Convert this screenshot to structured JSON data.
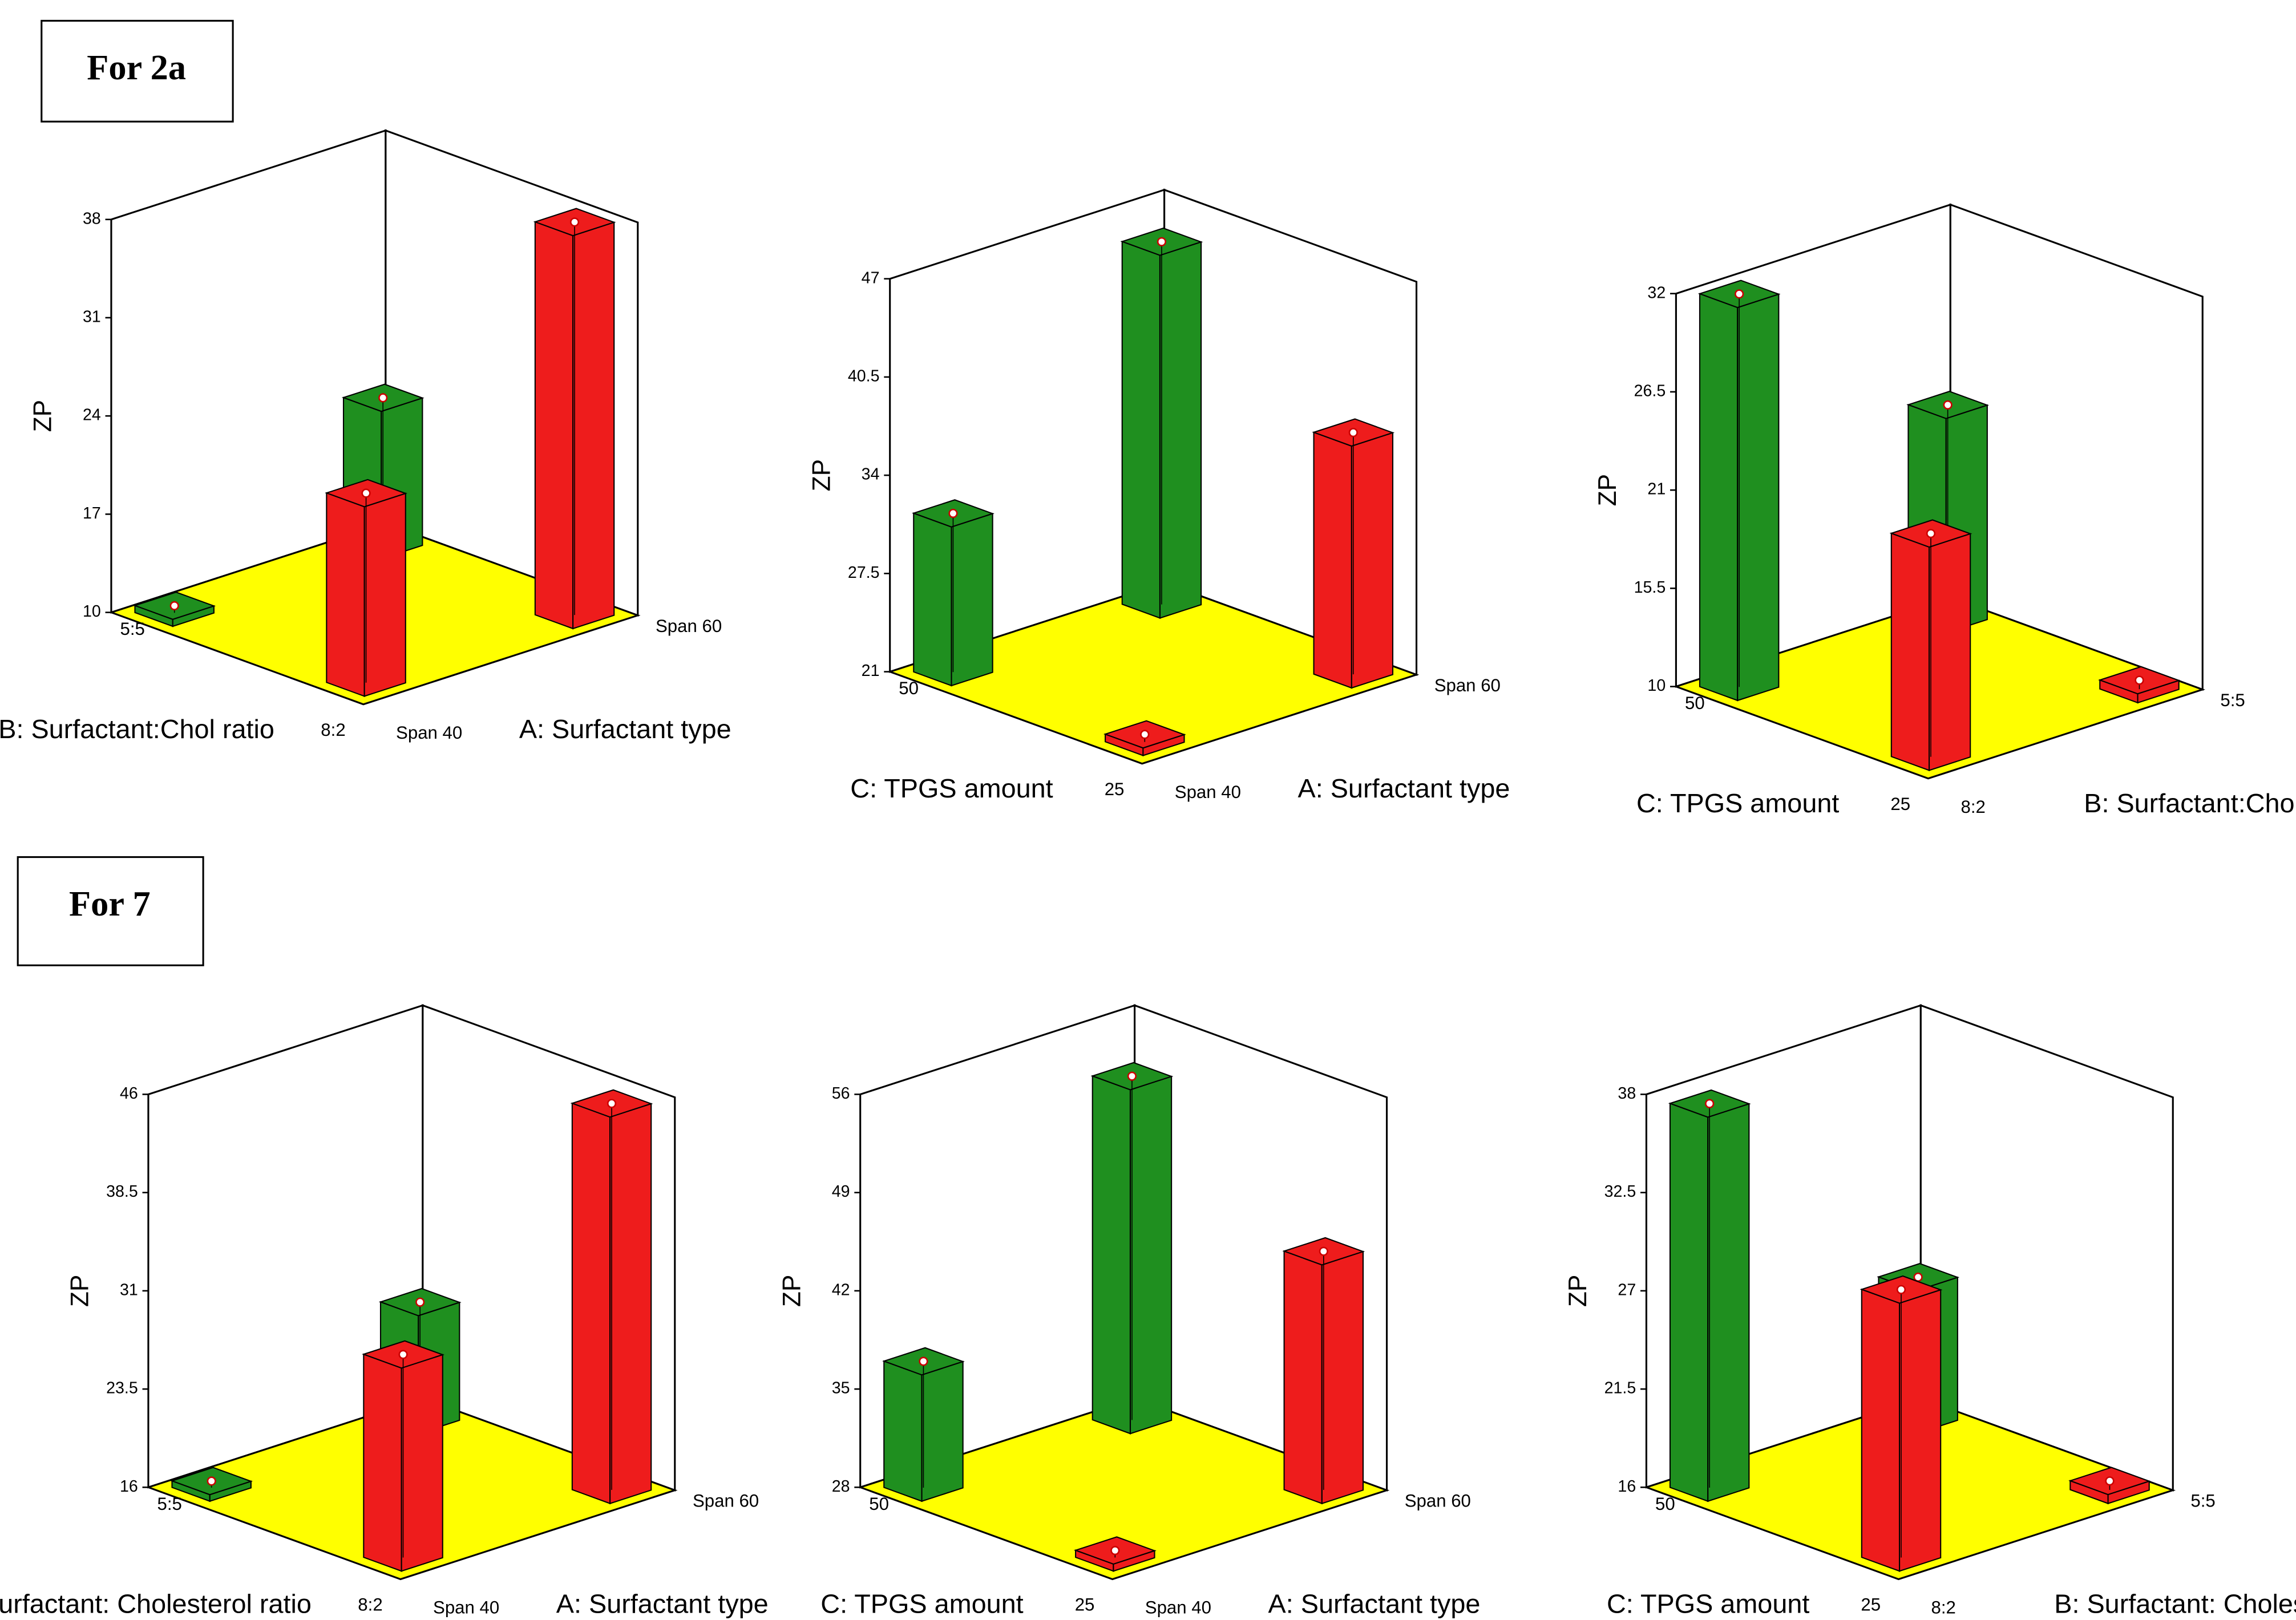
{
  "sections": [
    {
      "label": "For 2a",
      "chart_data": [
        {
          "type": "bar3d",
          "zlabel": "ZP",
          "zlim": [
            10,
            38
          ],
          "zticks": [
            10,
            17,
            24,
            31,
            38
          ],
          "x_label": "A: Surfactant type",
          "x_categories": [
            "Span 40",
            "Span 60"
          ],
          "depth_label": "B: Surfactant:Chol ratio",
          "depth_categories": [
            "8:2",
            "5:5"
          ],
          "values": [
            [
              23.5,
              38
            ],
            [
              10.5,
              20.5
            ]
          ],
          "colors": [
            [
              "#ee1c1c",
              "#ee1c1c"
            ],
            [
              "#1f8f1f",
              "#1f8f1f"
            ]
          ],
          "floor_color": "#ffff00"
        },
        {
          "type": "bar3d",
          "zlabel": "ZP",
          "zlim": [
            21,
            47
          ],
          "zticks": [
            21,
            27.5,
            34,
            40.5,
            47
          ],
          "x_label": "A: Surfactant type",
          "x_categories": [
            "Span 40",
            "Span 60"
          ],
          "depth_label": "C: TPGS amount",
          "depth_categories": [
            "25",
            "50"
          ],
          "values": [
            [
              21.5,
              37
            ],
            [
              31.5,
              45
            ]
          ],
          "colors": [
            [
              "#ee1c1c",
              "#ee1c1c"
            ],
            [
              "#1f8f1f",
              "#1f8f1f"
            ]
          ],
          "floor_color": "#ffff00"
        },
        {
          "type": "bar3d",
          "zlabel": "ZP",
          "zlim": [
            10,
            32
          ],
          "zticks": [
            10,
            15.5,
            21,
            26.5,
            32
          ],
          "x_label": "B: Surfactant:Chol ratio",
          "x_categories": [
            "8:2",
            "5:5"
          ],
          "depth_label": "C: TPGS amount",
          "depth_categories": [
            "25",
            "50"
          ],
          "values": [
            [
              22.5,
              10.5
            ],
            [
              32,
              22
            ]
          ],
          "colors": [
            [
              "#ee1c1c",
              "#ee1c1c"
            ],
            [
              "#1f8f1f",
              "#1f8f1f"
            ]
          ],
          "floor_color": "#ffff00"
        }
      ]
    },
    {
      "label": "For 7",
      "chart_data": [
        {
          "type": "bar3d",
          "zlabel": "ZP",
          "zlim": [
            16,
            46
          ],
          "zticks": [
            16,
            23.5,
            31,
            38.5,
            46
          ],
          "x_label": "A: Surfactant type",
          "x_categories": [
            "Span 40",
            "Span 60"
          ],
          "depth_label": "B: Surfactant: Cholesterol ratio",
          "depth_categories": [
            "8:2",
            "5:5"
          ],
          "values": [
            [
              31.5,
              45.5
            ],
            [
              16.5,
              25
            ]
          ],
          "colors": [
            [
              "#ee1c1c",
              "#ee1c1c"
            ],
            [
              "#1f8f1f",
              "#1f8f1f"
            ]
          ],
          "floor_color": "#ffff00"
        },
        {
          "type": "bar3d",
          "zlabel": "ZP",
          "zlim": [
            28,
            56
          ],
          "zticks": [
            28,
            35,
            42,
            49,
            56
          ],
          "x_label": "A: Surfactant type",
          "x_categories": [
            "Span 40",
            "Span 60"
          ],
          "depth_label": "C: TPGS amount",
          "depth_categories": [
            "25",
            "50"
          ],
          "values": [
            [
              28.5,
              45
            ],
            [
              37,
              52.5
            ]
          ],
          "colors": [
            [
              "#ee1c1c",
              "#ee1c1c"
            ],
            [
              "#1f8f1f",
              "#1f8f1f"
            ]
          ],
          "floor_color": "#ffff00"
        },
        {
          "type": "bar3d",
          "zlabel": "ZP",
          "zlim": [
            16,
            38
          ],
          "zticks": [
            16,
            21.5,
            27,
            32.5,
            38
          ],
          "x_label": "B: Surfactant: Cholesterol ratio",
          "x_categories": [
            "8:2",
            "5:5"
          ],
          "depth_label": "C: TPGS amount",
          "depth_categories": [
            "25",
            "50"
          ],
          "values": [
            [
              31,
              16.5
            ],
            [
              37.5,
              24
            ]
          ],
          "colors": [
            [
              "#ee1c1c",
              "#ee1c1c"
            ],
            [
              "#1f8f1f",
              "#1f8f1f"
            ]
          ],
          "floor_color": "#ffff00"
        }
      ]
    }
  ]
}
